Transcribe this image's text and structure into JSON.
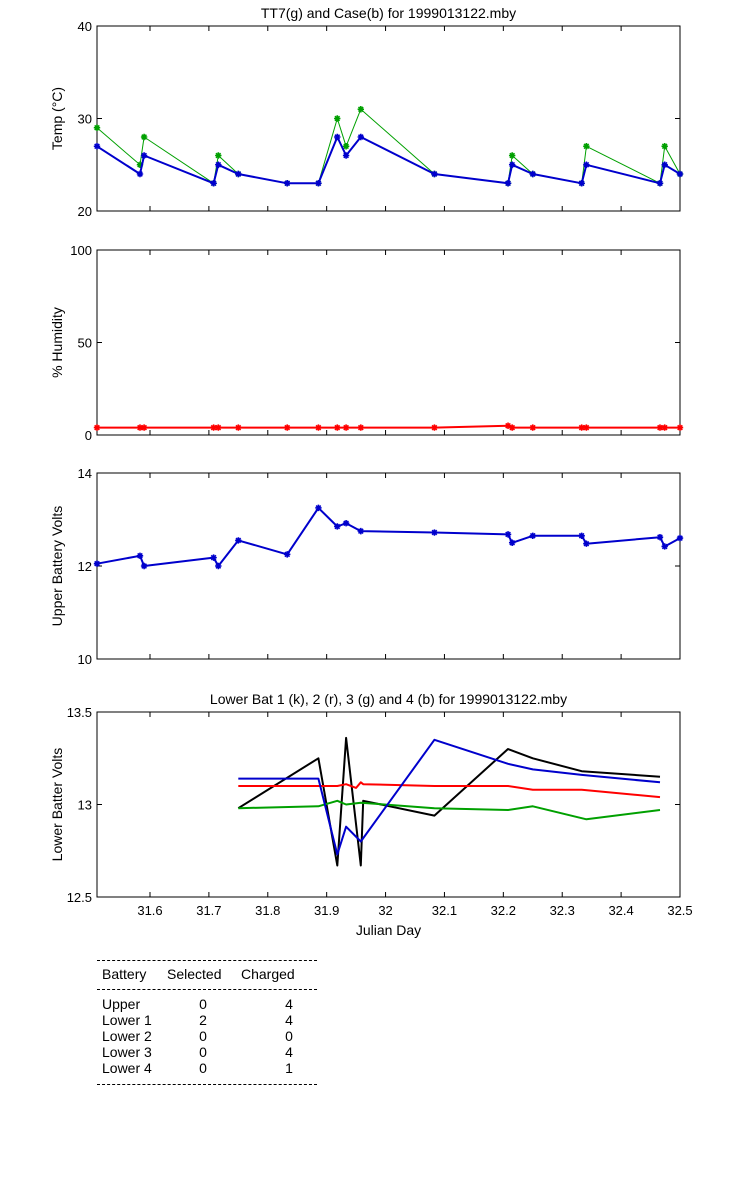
{
  "charts_common": {
    "x_ticks": [
      "31.6",
      "31.7",
      "31.8",
      "31.9",
      "32",
      "32.1",
      "32.2",
      "32.3",
      "32.4",
      "32.5"
    ],
    "x_tick_values": [
      31.6,
      31.7,
      31.8,
      31.9,
      32.0,
      32.1,
      32.2,
      32.3,
      32.4,
      32.5
    ],
    "xlim": [
      31.51,
      32.5
    ],
    "xlabel": "Julian Day"
  },
  "chart_data": [
    {
      "type": "line",
      "title": "TT7(g) and Case(b) for 1999013122.mby",
      "ylabel": "Temp  (°C)",
      "ylim": [
        20,
        40
      ],
      "y_ticks": [
        "20",
        "30",
        "40"
      ],
      "y_tick_values": [
        20,
        30,
        40
      ],
      "x": [
        31.51,
        31.583,
        31.59,
        31.708,
        31.716,
        31.75,
        31.833,
        31.886,
        31.918,
        31.933,
        31.958,
        32.083,
        32.208,
        32.215,
        32.25,
        32.333,
        32.341,
        32.466,
        32.474,
        32.5
      ],
      "series": [
        {
          "color": "#00a000",
          "marker": "star",
          "width": 1,
          "values": [
            29,
            25,
            28,
            23,
            26,
            24,
            23,
            23,
            30,
            27,
            31,
            24,
            23,
            26,
            24,
            23,
            27,
            23,
            27,
            24
          ]
        },
        {
          "color": "#0000cc",
          "marker": "star",
          "width": 2,
          "values": [
            27,
            24,
            26,
            23,
            25,
            24,
            23,
            23,
            28,
            26,
            28,
            24,
            23,
            25,
            24,
            23,
            25,
            23,
            25,
            24
          ]
        }
      ]
    },
    {
      "type": "line",
      "title": "",
      "ylabel": "% Humidity",
      "ylim": [
        0,
        100
      ],
      "y_ticks": [
        "0",
        "50",
        "100"
      ],
      "y_tick_values": [
        0,
        50,
        100
      ],
      "x": [
        31.51,
        31.583,
        31.59,
        31.708,
        31.716,
        31.75,
        31.833,
        31.886,
        31.918,
        31.933,
        31.958,
        32.083,
        32.208,
        32.215,
        32.25,
        32.333,
        32.341,
        32.466,
        32.474,
        32.5
      ],
      "series": [
        {
          "color": "#ff0000",
          "marker": "star",
          "width": 2,
          "values": [
            4,
            4,
            4,
            4,
            4,
            4,
            4,
            4,
            4,
            4,
            4,
            4,
            5,
            4,
            4,
            4,
            4,
            4,
            4,
            4
          ]
        }
      ]
    },
    {
      "type": "line",
      "title": "",
      "ylabel": "Upper Battery Volts",
      "ylim": [
        10,
        14
      ],
      "y_ticks": [
        "10",
        "12",
        "14"
      ],
      "y_tick_values": [
        10,
        12,
        14
      ],
      "x": [
        31.51,
        31.583,
        31.59,
        31.708,
        31.716,
        31.75,
        31.833,
        31.886,
        31.918,
        31.933,
        31.958,
        32.083,
        32.208,
        32.215,
        32.25,
        32.333,
        32.341,
        32.466,
        32.474,
        32.5
      ],
      "series": [
        {
          "color": "#0000cc",
          "marker": "star",
          "width": 2,
          "values": [
            12.05,
            12.22,
            12.0,
            12.18,
            12.0,
            12.55,
            12.25,
            13.25,
            12.85,
            12.92,
            12.75,
            12.72,
            12.68,
            12.5,
            12.65,
            12.65,
            12.48,
            12.62,
            12.42,
            12.6
          ]
        }
      ]
    },
    {
      "type": "line",
      "title": "Lower Bat 1 (k), 2 (r), 3 (g) and 4 (b) for 1999013122.mby",
      "ylabel": "Lower Batter Volts",
      "ylim": [
        12.5,
        13.5
      ],
      "y_ticks": [
        "12.5",
        "13",
        "13.5"
      ],
      "y_tick_values": [
        12.5,
        13.0,
        13.5
      ],
      "series": [
        {
          "color": "#000000",
          "width": 2,
          "x": [
            31.75,
            31.886,
            31.918,
            31.933,
            31.958,
            31.962,
            32.083,
            32.208,
            32.25,
            32.333,
            32.466
          ],
          "values": [
            12.98,
            13.25,
            12.67,
            13.36,
            12.67,
            13.02,
            12.94,
            13.3,
            13.25,
            13.18,
            13.15
          ]
        },
        {
          "color": "#ff0000",
          "width": 2,
          "x": [
            31.75,
            31.886,
            31.918,
            31.933,
            31.95,
            31.958,
            31.962,
            32.083,
            32.208,
            32.25,
            32.333,
            32.466
          ],
          "values": [
            13.1,
            13.1,
            13.1,
            13.11,
            13.09,
            13.12,
            13.11,
            13.1,
            13.1,
            13.08,
            13.08,
            13.04
          ]
        },
        {
          "color": "#00a000",
          "width": 2,
          "x": [
            31.75,
            31.886,
            31.918,
            31.933,
            31.958,
            32.083,
            32.208,
            32.25,
            32.341,
            32.466
          ],
          "values": [
            12.98,
            12.99,
            13.02,
            13.0,
            13.01,
            12.98,
            12.97,
            12.99,
            12.92,
            12.97
          ]
        },
        {
          "color": "#0000cc",
          "width": 2,
          "x": [
            31.75,
            31.886,
            31.918,
            31.933,
            31.958,
            32.083,
            32.208,
            32.25,
            32.333,
            32.466
          ],
          "values": [
            13.14,
            13.14,
            12.73,
            12.88,
            12.8,
            13.35,
            13.22,
            13.19,
            13.16,
            13.12
          ]
        }
      ]
    }
  ],
  "table": {
    "headers": [
      "Battery",
      "Selected",
      "Charged"
    ],
    "rows": [
      {
        "battery": "Upper",
        "selected": "0",
        "charged": "4"
      },
      {
        "battery": "Lower 1",
        "selected": "2",
        "charged": "4"
      },
      {
        "battery": "Lower 2",
        "selected": "0",
        "charged": "0"
      },
      {
        "battery": "Lower 3",
        "selected": "0",
        "charged": "4"
      },
      {
        "battery": "Lower 4",
        "selected": "0",
        "charged": "1"
      }
    ]
  }
}
